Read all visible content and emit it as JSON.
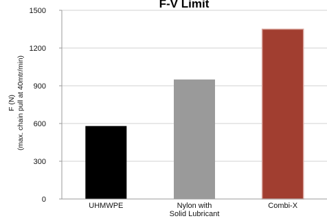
{
  "chart_data": {
    "type": "bar",
    "title": "F-V Limit",
    "xlabel": "",
    "ylabel_lines": [
      "F (N)",
      "(max. chain pull at 40mtr/min)"
    ],
    "ylim": [
      0,
      1500
    ],
    "yticks": [
      0,
      300,
      600,
      900,
      1200,
      1500
    ],
    "grid": true,
    "legend": "none",
    "categories": [
      "UHMWPE",
      "Nylon with Solid Lubricant",
      "Combi-X"
    ],
    "category_label_lines": [
      [
        "UHMWPE"
      ],
      [
        "Nylon with",
        "Solid Lubricant"
      ],
      [
        "Combi-X"
      ]
    ],
    "values": [
      580,
      950,
      1350
    ],
    "colors": [
      "#000000",
      "#9a9a9a",
      "#a13e30"
    ],
    "grid_color": "#d0d0d0",
    "axis_color": "#9a9a9a"
  }
}
